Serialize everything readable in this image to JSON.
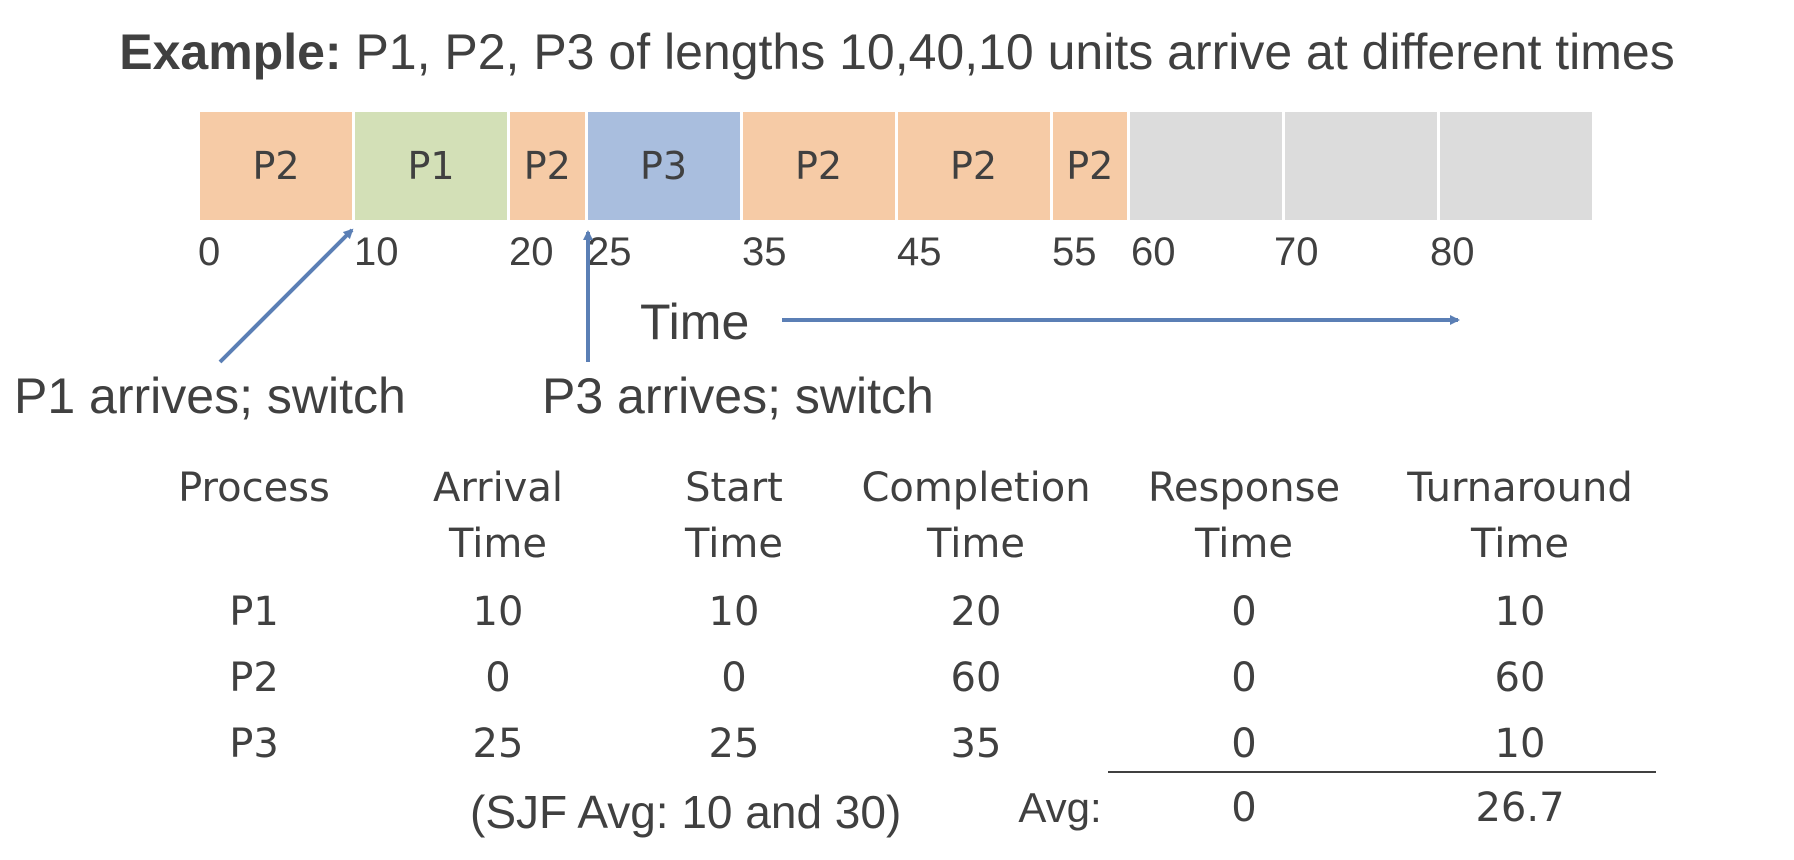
{
  "title": {
    "bold": "Example:",
    "rest": " P1, P2, P3 of lengths 10,40,10 units arrive at different times"
  },
  "colors": {
    "P1": "#d3e0b7",
    "P2": "#f6cba6",
    "P3": "#a9bede",
    "idle": "#dcdcdc",
    "arrow": "#5b7fb5"
  },
  "gantt": {
    "segments": [
      {
        "label": "P2",
        "start": 0,
        "end": 10,
        "kind": "P2"
      },
      {
        "label": "P1",
        "start": 10,
        "end": 20,
        "kind": "P1"
      },
      {
        "label": "P2",
        "start": 20,
        "end": 25,
        "kind": "P2"
      },
      {
        "label": "P3",
        "start": 25,
        "end": 35,
        "kind": "P3"
      },
      {
        "label": "P2",
        "start": 35,
        "end": 45,
        "kind": "P2"
      },
      {
        "label": "P2",
        "start": 45,
        "end": 55,
        "kind": "P2"
      },
      {
        "label": "P2",
        "start": 55,
        "end": 60,
        "kind": "P2"
      },
      {
        "label": "",
        "start": 60,
        "end": 70,
        "kind": "idle"
      },
      {
        "label": "",
        "start": 70,
        "end": 80,
        "kind": "idle"
      },
      {
        "label": "",
        "start": 80,
        "end": 90,
        "kind": "idle"
      }
    ],
    "ticks": [
      "0",
      "10",
      "20",
      "25",
      "35",
      "45",
      "55",
      "60",
      "70",
      "80"
    ],
    "time_label": "Time"
  },
  "annotations": {
    "p1": "P1 arrives; switch",
    "p3": "P3 arrives; switch"
  },
  "table": {
    "headers": [
      {
        "line1": "",
        "line2": "Process"
      },
      {
        "line1": "Arrival",
        "line2": "Time"
      },
      {
        "line1": "Start",
        "line2": "Time"
      },
      {
        "line1": "Completion",
        "line2": "Time"
      },
      {
        "line1": "Response",
        "line2": "Time"
      },
      {
        "line1": "Turnaround",
        "line2": "Time"
      }
    ],
    "rows": [
      [
        "P1",
        "10",
        "10",
        "20",
        "0",
        "10"
      ],
      [
        "P2",
        "0",
        "0",
        "60",
        "0",
        "60"
      ],
      [
        "P3",
        "25",
        "25",
        "35",
        "0",
        "10"
      ]
    ],
    "sjf_note": "(SJF Avg: 10 and 30)",
    "avg_label": "Avg:",
    "avg_response": "0",
    "avg_turnaround": "26.7"
  }
}
